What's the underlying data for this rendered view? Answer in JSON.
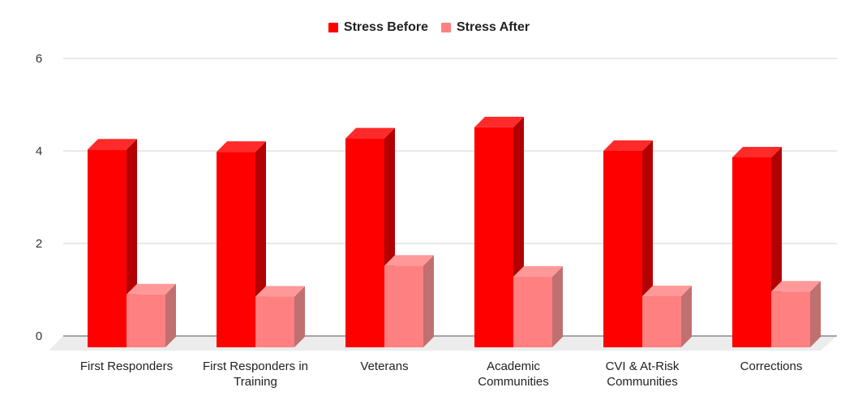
{
  "chart_data": {
    "type": "bar",
    "style": "3d",
    "categories": [
      [
        "First Responders"
      ],
      [
        "First Responders in",
        "Training"
      ],
      [
        "Veterans"
      ],
      [
        "Academic",
        "Communities"
      ],
      [
        "CVI & At-Risk",
        "Communities"
      ],
      [
        "Corrections"
      ]
    ],
    "series": [
      {
        "name": "Stress Before",
        "color": "#ff0000",
        "values": [
          4.03,
          3.98,
          4.27,
          4.51,
          4.0,
          3.86
        ]
      },
      {
        "name": "Stress After",
        "color": "#ff8080",
        "values": [
          0.9,
          0.85,
          1.52,
          1.28,
          0.86,
          0.96
        ]
      }
    ],
    "ylim": [
      0,
      6
    ],
    "yticks": [
      "0",
      "2",
      "4",
      "6"
    ],
    "grid": true,
    "legend_position": "top-center"
  }
}
